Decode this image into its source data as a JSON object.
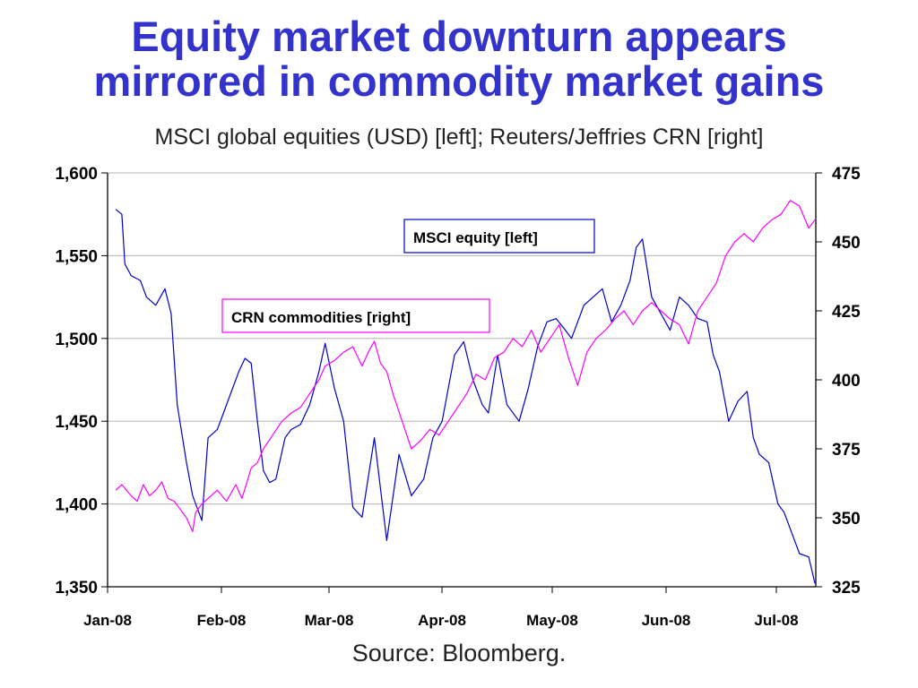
{
  "chart_data": {
    "type": "line",
    "title": "Equity market downturn appears mirrored in commodity market gains",
    "title_lines": [
      "Equity market downturn appears",
      "mirrored in commodity market gains"
    ],
    "subtitle": "MSCI global equities (USD) [left]; Reuters/Jeffries CRN [right]",
    "source": "Source: Bloomberg.",
    "y_left": {
      "min": 1350,
      "max": 1600,
      "ticks": [
        "1,350",
        "1,400",
        "1,450",
        "1,500",
        "1,550",
        "1,600"
      ]
    },
    "y_right": {
      "min": 325,
      "max": 475,
      "ticks": [
        "325",
        "350",
        "375",
        "400",
        "425",
        "450",
        "475"
      ]
    },
    "x_ticks": [
      "Jan-08",
      "Feb-08",
      "Mar-08",
      "Apr-08",
      "May-08",
      "Jun-08",
      "Jul-08"
    ],
    "grid": true,
    "colors": {
      "equity": "#0000cc",
      "commodity": "#ff00ff",
      "title": "#3333cc"
    },
    "series": [
      {
        "name": "MSCI equity [left]",
        "axis": "left",
        "color": "#0000cc",
        "x": [
          0,
          2,
          3,
          5,
          8,
          10,
          13,
          16,
          18,
          20,
          23,
          25,
          28,
          30,
          33,
          35,
          37,
          40,
          42,
          44,
          46,
          48,
          50,
          52,
          55,
          57,
          60,
          63,
          66,
          68,
          71,
          74,
          77,
          80,
          84,
          88,
          92,
          96,
          98,
          100,
          103,
          106,
          108,
          110,
          113,
          116,
          119,
          121,
          124,
          127,
          131,
          134,
          137,
          140,
          143,
          146,
          148,
          150,
          152,
          155,
          158,
          161,
          164,
          167,
          169,
          171,
          174,
          177,
          180,
          183,
          186,
          189,
          192,
          194,
          196,
          199,
          202,
          205,
          207,
          209,
          212,
          215,
          217,
          219,
          222,
          225,
          227
        ],
        "values": [
          1578,
          1575,
          1545,
          1538,
          1535,
          1525,
          1520,
          1530,
          1515,
          1460,
          1425,
          1405,
          1390,
          1440,
          1445,
          1455,
          1465,
          1480,
          1488,
          1485,
          1450,
          1420,
          1413,
          1415,
          1440,
          1445,
          1448,
          1460,
          1480,
          1497,
          1470,
          1450,
          1398,
          1392,
          1440,
          1378,
          1430,
          1405,
          1410,
          1415,
          1440,
          1450,
          1470,
          1490,
          1498,
          1475,
          1460,
          1455,
          1490,
          1460,
          1450,
          1470,
          1495,
          1510,
          1512,
          1505,
          1500,
          1510,
          1520,
          1525,
          1530,
          1510,
          1520,
          1535,
          1555,
          1560,
          1525,
          1515,
          1505,
          1525,
          1520,
          1512,
          1510,
          1490,
          1480,
          1450,
          1462,
          1468,
          1440,
          1430,
          1425,
          1400,
          1395,
          1385,
          1370,
          1368,
          1352
        ]
      },
      {
        "name": "CRN commodities [right]",
        "axis": "right",
        "color": "#ff00ff",
        "x": [
          0,
          2,
          5,
          7,
          9,
          11,
          13,
          15,
          17,
          19,
          21,
          23,
          25,
          26,
          28,
          30,
          33,
          36,
          39,
          41,
          44,
          46,
          48,
          51,
          54,
          57,
          60,
          63,
          66,
          68,
          71,
          74,
          77,
          80,
          82,
          84,
          86,
          88,
          90,
          93,
          96,
          99,
          102,
          105,
          108,
          111,
          114,
          117,
          120,
          123,
          126,
          129,
          132,
          135,
          138,
          141,
          144,
          147,
          150,
          153,
          156,
          159,
          162,
          165,
          168,
          171,
          174,
          177,
          180,
          183,
          186,
          189,
          192,
          195,
          198,
          201,
          204,
          207,
          210,
          213,
          216,
          219,
          222,
          225,
          227
        ],
        "values": [
          360,
          362,
          358,
          356,
          362,
          358,
          360,
          363,
          357,
          356,
          353,
          350,
          345,
          352,
          355,
          357,
          360,
          356,
          362,
          357,
          368,
          370,
          375,
          380,
          385,
          388,
          390,
          395,
          400,
          405,
          407,
          410,
          412,
          405,
          410,
          414,
          406,
          403,
          395,
          385,
          375,
          378,
          382,
          380,
          385,
          390,
          395,
          402,
          400,
          408,
          410,
          415,
          412,
          418,
          410,
          415,
          420,
          408,
          398,
          410,
          415,
          418,
          422,
          425,
          420,
          425,
          428,
          425,
          422,
          420,
          413,
          425,
          430,
          435,
          445,
          450,
          453,
          450,
          455,
          458,
          460,
          465,
          463,
          455,
          458
        ]
      }
    ]
  },
  "legend": {
    "equity_label": "MSCI equity [left]",
    "commodity_label": "CRN commodities [right]"
  }
}
